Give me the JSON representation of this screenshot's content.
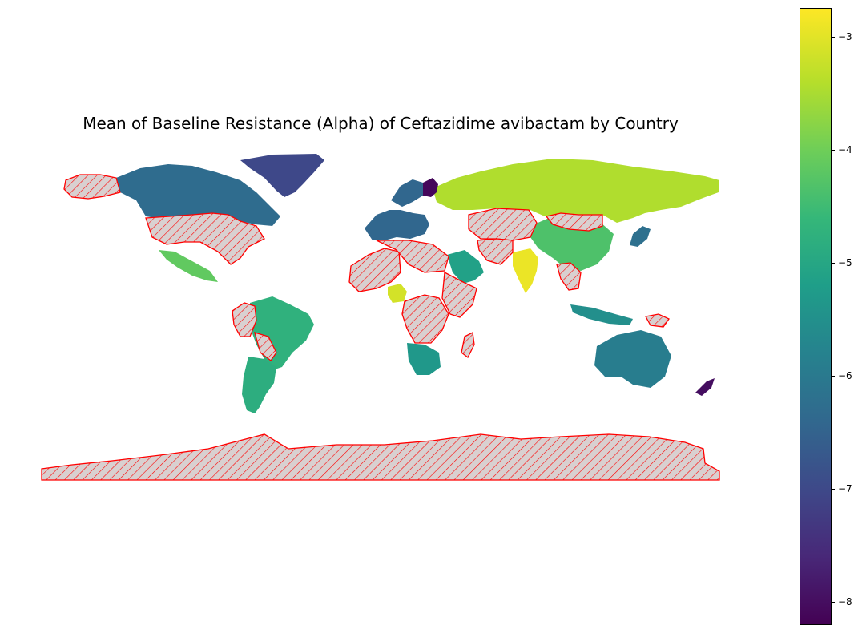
{
  "map": {
    "title": "Mean of Baseline Resistance (Alpha) of Ceftazidime avibactam by Country",
    "missing_style": {
      "fill": "#d9d0d0",
      "hatch": "#ff0000",
      "edge": "#ff0000"
    },
    "colormap": "viridis",
    "regions": [
      {
        "name": "Greenland",
        "value": -7.0
      },
      {
        "name": "Canada",
        "value": -6.3
      },
      {
        "name": "Russia",
        "value": -3.4
      },
      {
        "name": "Finland",
        "value": -8.1
      },
      {
        "name": "Mexico",
        "value": -4.1
      },
      {
        "name": "Brazil",
        "value": -4.7
      },
      {
        "name": "Argentina",
        "value": -4.8
      },
      {
        "name": "China",
        "value": -4.3
      },
      {
        "name": "India",
        "value": -2.9
      },
      {
        "name": "Nigeria",
        "value": -3.1
      },
      {
        "name": "South Africa",
        "value": -5.3
      },
      {
        "name": "Saudi Arabia",
        "value": -5.1
      },
      {
        "name": "Australia",
        "value": -5.9
      },
      {
        "name": "New Zealand",
        "value": -8.0
      },
      {
        "name": "Japan",
        "value": -6.2
      },
      {
        "name": "Western Europe",
        "value": -6.4
      },
      {
        "name": "Indonesia",
        "value": -5.5
      }
    ],
    "missing_regions": [
      "United States",
      "Alaska",
      "Peru",
      "Colombia",
      "Western Africa",
      "Central Africa",
      "Eastern Africa",
      "Central Asia",
      "Mongolia",
      "Pakistan",
      "Southeast Asia",
      "Antarctica"
    ]
  },
  "colorbar": {
    "min": -8.2,
    "max": -2.75,
    "ticks": [
      -3,
      -4,
      -5,
      -6,
      -7,
      -8
    ],
    "tick_labels": [
      "−3",
      "−4",
      "−5",
      "−6",
      "−7",
      "−8"
    ]
  }
}
